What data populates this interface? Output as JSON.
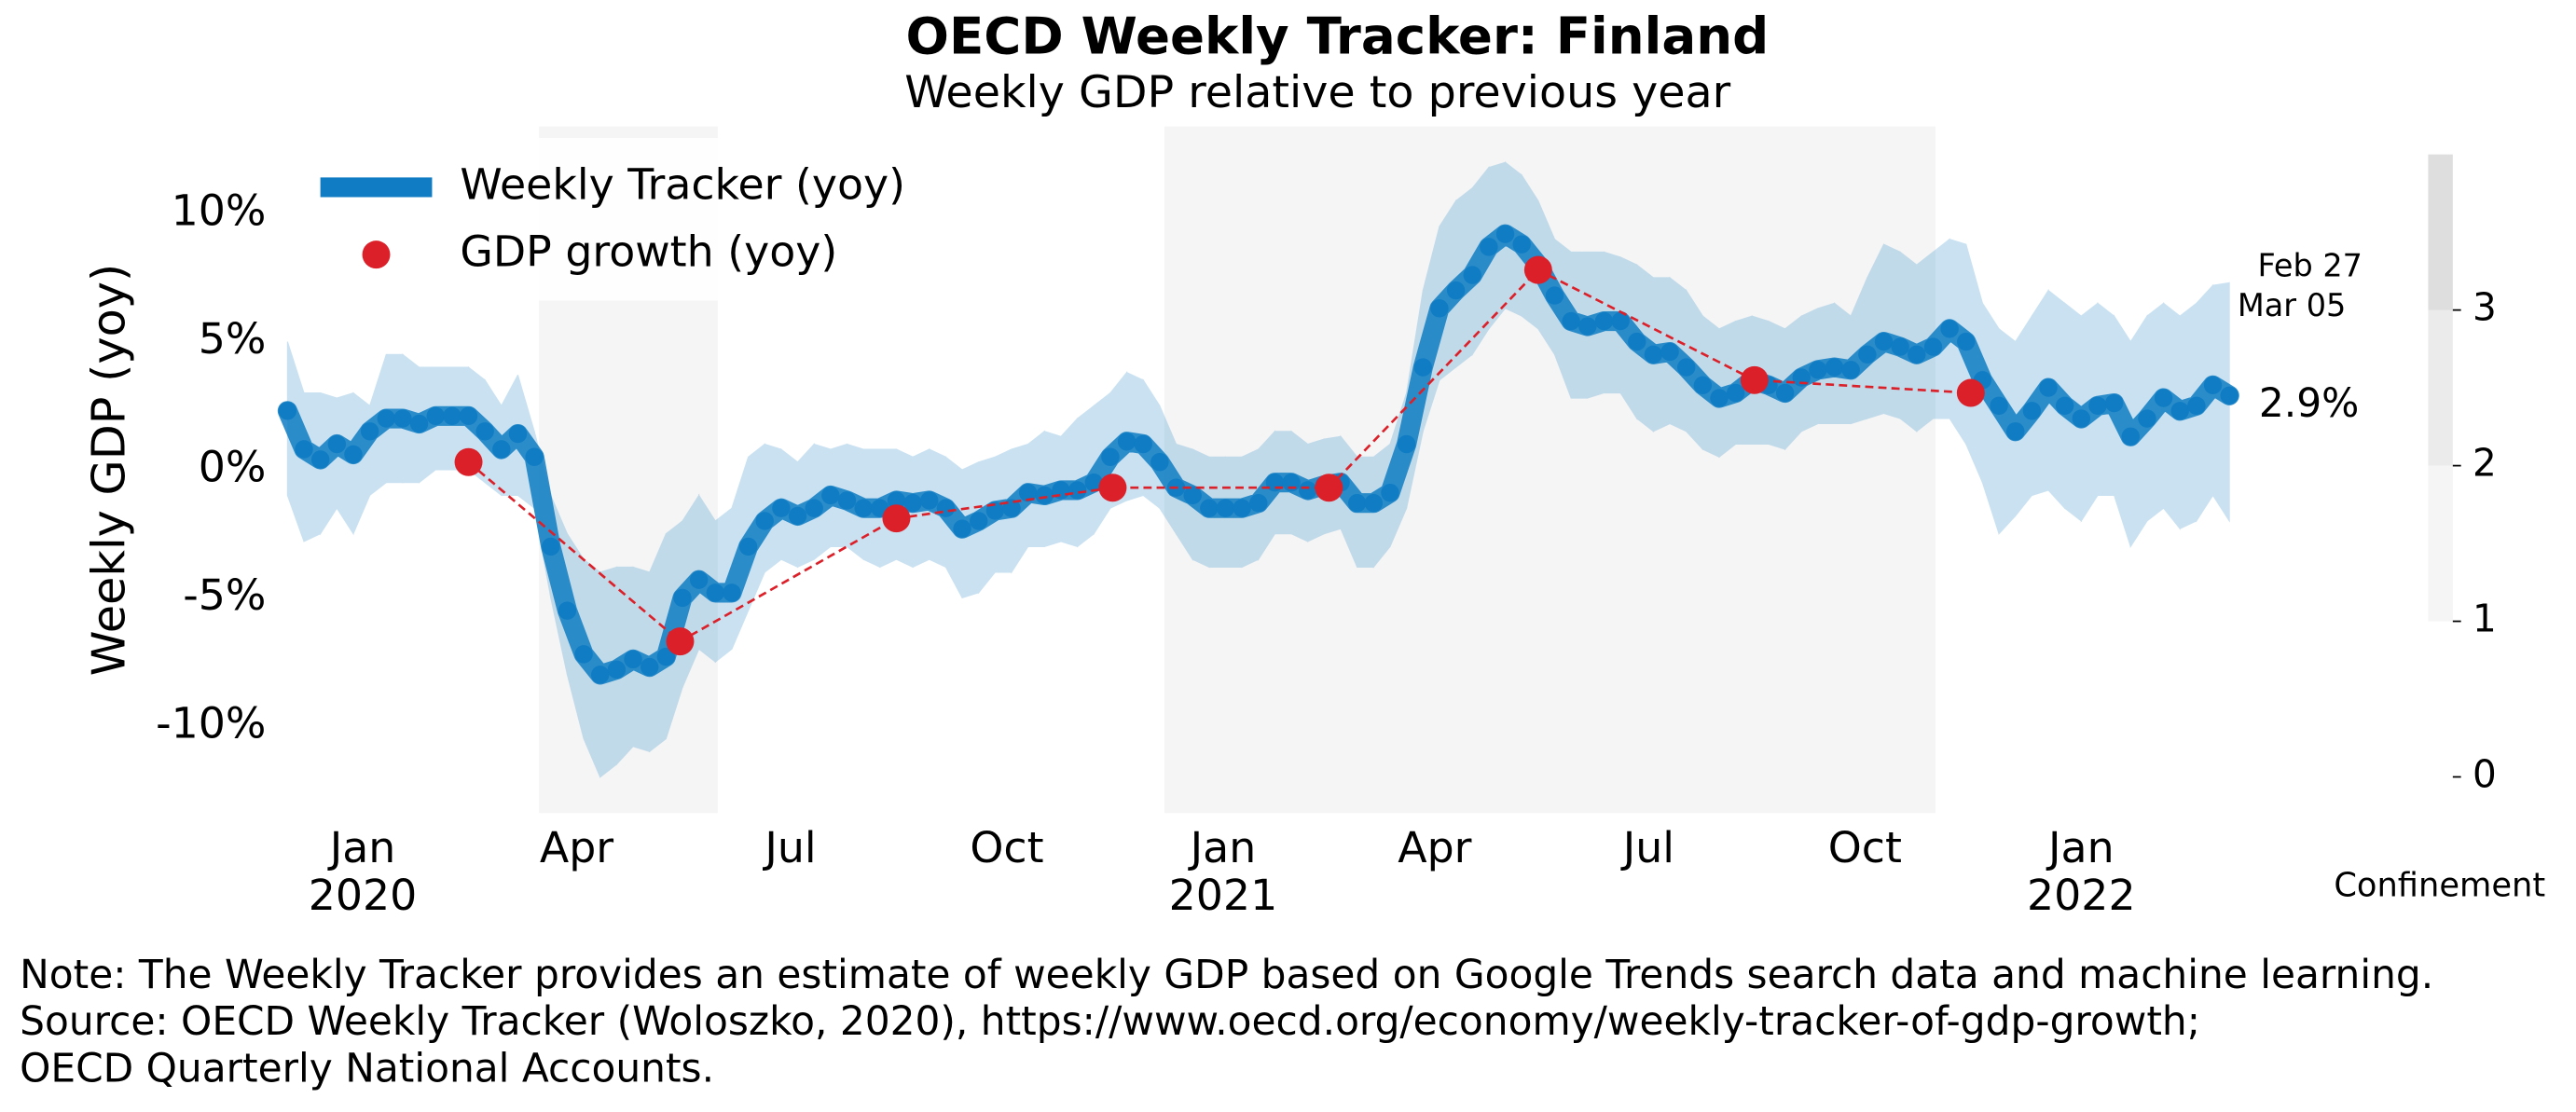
{
  "chart_data": {
    "type": "line",
    "title": "OECD Weekly Tracker: Finland",
    "subtitle": "Weekly GDP relative to previous year",
    "y_label": "Weekly GDP (yoy)",
    "legend": "upper left",
    "grid": false,
    "xlim": [
      "2019-11-30",
      "2022-03-05"
    ],
    "xticks": [
      {
        "value": "2020-01-01",
        "label": "Jan\n2020"
      },
      {
        "value": "2020-04-01",
        "label": "Apr"
      },
      {
        "value": "2020-07-01",
        "label": "Jul"
      },
      {
        "value": "2020-10-01",
        "label": "Oct"
      },
      {
        "value": "2021-01-01",
        "label": "Jan\n2021"
      },
      {
        "value": "2021-04-01",
        "label": "Apr"
      },
      {
        "value": "2021-07-01",
        "label": "Jul"
      },
      {
        "value": "2021-10-01",
        "label": "Oct"
      },
      {
        "value": "2022-01-01",
        "label": "Jan\n2022"
      }
    ],
    "ylim": [
      -13.4,
      13.4
    ],
    "yticks": [
      {
        "value": -10,
        "label": "-10%"
      },
      {
        "value": -5,
        "label": "-5%"
      },
      {
        "value": 0,
        "label": "0%"
      },
      {
        "value": 5,
        "label": "5%"
      },
      {
        "value": 10,
        "label": "10%"
      }
    ],
    "series": [
      {
        "name": "Weekly Tracker (yoy)",
        "color": "#0f7cc3",
        "last_value_label": "2.9%",
        "x": [
          "2019-11-30",
          "2019-12-07",
          "2019-12-14",
          "2019-12-21",
          "2019-12-28",
          "2020-01-04",
          "2020-01-11",
          "2020-01-18",
          "2020-01-25",
          "2020-02-01",
          "2020-02-08",
          "2020-02-15",
          "2020-02-22",
          "2020-02-29",
          "2020-03-07",
          "2020-03-14",
          "2020-03-21",
          "2020-03-28",
          "2020-04-04",
          "2020-04-11",
          "2020-04-18",
          "2020-04-25",
          "2020-05-02",
          "2020-05-09",
          "2020-05-16",
          "2020-05-23",
          "2020-05-30",
          "2020-06-06",
          "2020-06-13",
          "2020-06-20",
          "2020-06-27",
          "2020-07-04",
          "2020-07-11",
          "2020-07-18",
          "2020-07-25",
          "2020-08-01",
          "2020-08-08",
          "2020-08-15",
          "2020-08-22",
          "2020-08-29",
          "2020-09-05",
          "2020-09-12",
          "2020-09-19",
          "2020-09-26",
          "2020-10-03",
          "2020-10-10",
          "2020-10-17",
          "2020-10-24",
          "2020-10-31",
          "2020-11-07",
          "2020-11-14",
          "2020-11-21",
          "2020-11-28",
          "2020-12-05",
          "2020-12-12",
          "2020-12-19",
          "2020-12-26",
          "2021-01-02",
          "2021-01-09",
          "2021-01-16",
          "2021-01-23",
          "2021-01-30",
          "2021-02-06",
          "2021-02-13",
          "2021-02-20",
          "2021-02-27",
          "2021-03-06",
          "2021-03-13",
          "2021-03-20",
          "2021-03-27",
          "2021-04-03",
          "2021-04-10",
          "2021-04-17",
          "2021-04-24",
          "2021-05-01",
          "2021-05-08",
          "2021-05-15",
          "2021-05-22",
          "2021-05-29",
          "2021-06-05",
          "2021-06-12",
          "2021-06-19",
          "2021-06-26",
          "2021-07-03",
          "2021-07-10",
          "2021-07-17",
          "2021-07-24",
          "2021-07-31",
          "2021-08-07",
          "2021-08-14",
          "2021-08-21",
          "2021-08-28",
          "2021-09-04",
          "2021-09-11",
          "2021-09-18",
          "2021-09-25",
          "2021-10-02",
          "2021-10-09",
          "2021-10-16",
          "2021-10-23",
          "2021-10-30",
          "2021-11-06",
          "2021-11-13",
          "2021-11-20",
          "2021-11-27",
          "2021-12-04",
          "2021-12-11",
          "2021-12-18",
          "2021-12-25",
          "2022-01-01",
          "2022-01-08",
          "2022-01-15",
          "2022-01-22",
          "2022-01-29",
          "2022-02-05",
          "2022-02-12",
          "2022-02-19",
          "2022-02-26",
          "2022-03-05"
        ],
        "values": [
          2.3,
          0.8,
          0.4,
          1.0,
          0.6,
          1.5,
          2.0,
          2.0,
          1.8,
          2.1,
          2.1,
          2.1,
          1.5,
          0.8,
          1.4,
          0.5,
          -3.0,
          -5.5,
          -7.2,
          -8.0,
          -7.8,
          -7.4,
          -7.7,
          -7.3,
          -5.0,
          -4.3,
          -4.8,
          -4.8,
          -3.0,
          -2.0,
          -1.5,
          -1.8,
          -1.5,
          -1.0,
          -1.2,
          -1.5,
          -1.5,
          -1.2,
          -1.3,
          -1.2,
          -1.5,
          -2.3,
          -2.0,
          -1.6,
          -1.5,
          -0.9,
          -1.0,
          -0.8,
          -0.8,
          -0.5,
          0.5,
          1.1,
          1.0,
          0.3,
          -0.7,
          -1.0,
          -1.5,
          -1.5,
          -1.5,
          -1.3,
          -0.5,
          -0.5,
          -0.8,
          -0.6,
          -0.5,
          -1.3,
          -1.3,
          -0.9,
          1.0,
          4.0,
          6.3,
          7.0,
          7.6,
          8.7,
          9.2,
          8.8,
          8.0,
          6.8,
          5.8,
          5.6,
          5.8,
          5.8,
          5.0,
          4.5,
          4.6,
          4.0,
          3.3,
          2.8,
          3.0,
          3.5,
          3.3,
          3.0,
          3.6,
          3.9,
          4.0,
          3.9,
          4.5,
          5.0,
          4.8,
          4.5,
          4.8,
          5.5,
          5.0,
          3.5,
          2.5,
          1.5,
          2.3,
          3.2,
          2.5,
          2.0,
          2.5,
          2.6,
          1.3,
          2.0,
          2.8,
          2.3,
          2.5,
          3.3,
          2.9
        ],
        "upper": [
          5.0,
          3.0,
          3.0,
          2.8,
          3.0,
          2.5,
          4.5,
          4.5,
          4.0,
          4.0,
          4.0,
          4.0,
          3.5,
          2.5,
          3.7,
          1.5,
          -1.0,
          -2.5,
          -3.5,
          -4.0,
          -3.8,
          -3.8,
          -4.0,
          -2.5,
          -2.0,
          -1.0,
          -2.0,
          -1.5,
          0.5,
          1.0,
          0.8,
          0.3,
          1.0,
          0.8,
          1.0,
          0.8,
          0.8,
          0.8,
          0.5,
          0.8,
          0.5,
          0.0,
          0.3,
          0.5,
          0.8,
          1.0,
          1.5,
          1.3,
          2.0,
          2.5,
          3.0,
          3.8,
          3.5,
          2.5,
          1.0,
          0.8,
          0.5,
          0.5,
          0.5,
          0.8,
          1.5,
          1.5,
          1.0,
          1.2,
          1.3,
          0.5,
          0.5,
          1.0,
          3.0,
          7.0,
          9.5,
          10.5,
          11.0,
          11.8,
          12.0,
          11.5,
          10.5,
          9.0,
          8.5,
          8.5,
          8.5,
          8.3,
          8.0,
          7.5,
          7.5,
          7.0,
          6.0,
          5.5,
          5.8,
          6.0,
          5.8,
          5.5,
          6.0,
          6.3,
          6.5,
          6.0,
          7.5,
          8.8,
          8.5,
          8.0,
          8.5,
          9.0,
          8.8,
          6.5,
          5.5,
          5.0,
          6.0,
          7.0,
          6.5,
          6.0,
          6.5,
          6.0,
          5.0,
          6.0,
          6.5,
          6.0,
          6.5,
          7.2,
          7.3
        ],
        "lower": [
          -1.0,
          -2.8,
          -2.5,
          -1.5,
          -2.5,
          -1.0,
          -0.5,
          -0.5,
          -0.5,
          0.0,
          0.0,
          0.0,
          -0.5,
          -1.0,
          -1.0,
          -1.5,
          -5.0,
          -8.0,
          -10.5,
          -12.0,
          -11.5,
          -10.8,
          -11.0,
          -10.5,
          -8.5,
          -7.0,
          -7.5,
          -7.0,
          -5.5,
          -4.0,
          -3.5,
          -3.8,
          -3.5,
          -3.0,
          -3.0,
          -3.5,
          -3.8,
          -3.5,
          -3.8,
          -3.5,
          -3.8,
          -5.0,
          -4.8,
          -4.0,
          -4.0,
          -3.0,
          -3.0,
          -2.8,
          -3.0,
          -2.5,
          -1.5,
          -1.2,
          -1.0,
          -1.5,
          -2.5,
          -3.5,
          -3.8,
          -3.8,
          -3.8,
          -3.5,
          -2.5,
          -2.5,
          -2.8,
          -2.5,
          -2.3,
          -3.8,
          -3.8,
          -3.0,
          -1.5,
          1.5,
          3.5,
          4.0,
          4.5,
          5.5,
          6.3,
          6.0,
          5.5,
          4.5,
          2.8,
          2.8,
          3.0,
          3.0,
          2.0,
          1.5,
          1.8,
          1.5,
          0.8,
          0.5,
          1.0,
          1.0,
          1.0,
          0.8,
          1.5,
          1.8,
          1.8,
          1.8,
          2.0,
          2.2,
          2.0,
          1.5,
          2.0,
          2.0,
          1.0,
          -0.5,
          -2.5,
          -1.8,
          -1.0,
          -0.8,
          -1.5,
          -2.0,
          -1.0,
          -1.0,
          -3.0,
          -2.0,
          -1.5,
          -2.3,
          -2.0,
          -1.0,
          -2.0
        ]
      },
      {
        "name": "GDP growth (yoy)",
        "color": "#dc2029",
        "x": [
          "2020-02-15",
          "2020-05-15",
          "2020-08-15",
          "2020-11-15",
          "2021-02-15",
          "2021-05-15",
          "2021-08-15",
          "2021-11-15"
        ],
        "values": [
          0.3,
          -6.7,
          -1.9,
          -0.7,
          -0.7,
          7.8,
          3.5,
          3.0
        ]
      }
    ],
    "confinement": [
      {
        "start": "2020-03-16",
        "end": "2020-05-31",
        "level": 1
      },
      {
        "start": "2020-12-07",
        "end": "2021-10-31",
        "level": 1
      }
    ],
    "colorbar": {
      "title": "Confinement",
      "lim": [
        0,
        4
      ],
      "ticks": [
        0,
        1,
        2,
        3
      ],
      "colors": [
        "#ffffff",
        "#f5f5f5",
        "#ebebeb",
        "#dedede"
      ]
    },
    "annotations": [
      "Feb 27",
      "Mar 05"
    ],
    "note": [
      "Note: The Weekly Tracker provides an estimate of weekly GDP based on Google Trends search data and machine learning.",
      "Source: OECD Weekly Tracker (Woloszko, 2020), https://www.oecd.org/economy/weekly-tracker-of-gdp-growth;",
      "OECD Quarterly National Accounts."
    ]
  }
}
